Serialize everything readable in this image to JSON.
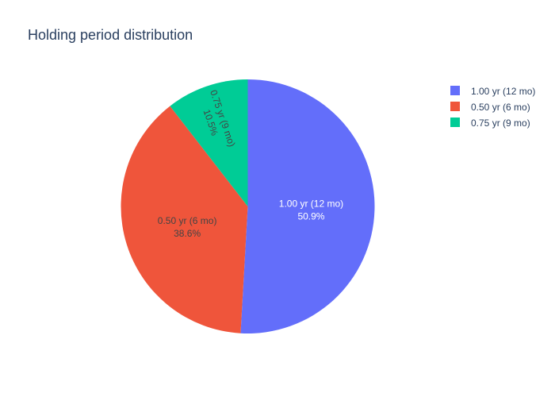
{
  "chart_data": {
    "type": "pie",
    "title": "Holding period distribution",
    "labels": [
      "1.00 yr (12 mo)",
      "0.50 yr (6 mo)",
      "0.75 yr (9 mo)"
    ],
    "percent_labels": [
      "50.9%",
      "38.6%",
      "10.5%"
    ],
    "values": [
      50.9,
      38.6,
      10.5
    ],
    "colors": [
      "#636efa",
      "#ef553b",
      "#00cc96"
    ],
    "direction": "clockwise",
    "start_angle": "12 o'clock",
    "legend": {
      "placement": "top-right",
      "entries": [
        "1.00 yr (12 mo)",
        "0.50 yr (6 mo)",
        "0.75 yr (9 mo)"
      ]
    }
  }
}
